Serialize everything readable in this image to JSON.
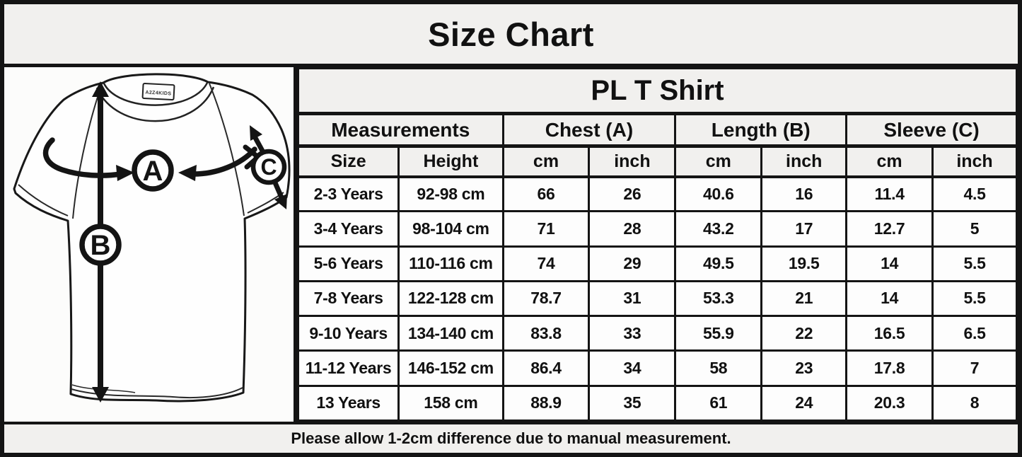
{
  "page": {
    "title": "Size Chart",
    "footer_note": "Please allow 1-2cm difference due to manual measurement."
  },
  "diagram": {
    "shirt_label": "A2Z4KIDS",
    "markers": [
      "A",
      "B",
      "C"
    ]
  },
  "table": {
    "product_header": "PL T Shirt",
    "group_headers": [
      "Measurements",
      "Chest (A)",
      "Length (B)",
      "Sleeve (C)"
    ],
    "sub_headers": [
      "Size",
      "Height",
      "cm",
      "inch",
      "cm",
      "inch",
      "cm",
      "inch"
    ]
  },
  "chart_data": {
    "type": "table",
    "title": "Size Chart",
    "subtitle": "PL T Shirt",
    "column_groups": [
      "Measurements",
      "Chest (A)",
      "Length (B)",
      "Sleeve (C)"
    ],
    "columns": [
      "Size",
      "Height",
      "Chest (A) cm",
      "Chest (A) inch",
      "Length (B) cm",
      "Length (B) inch",
      "Sleeve (C) cm",
      "Sleeve (C) inch"
    ],
    "rows": [
      [
        "2-3 Years",
        "92-98 cm",
        "66",
        "26",
        "40.6",
        "16",
        "11.4",
        "4.5"
      ],
      [
        "3-4 Years",
        "98-104 cm",
        "71",
        "28",
        "43.2",
        "17",
        "12.7",
        "5"
      ],
      [
        "5-6 Years",
        "110-116 cm",
        "74",
        "29",
        "49.5",
        "19.5",
        "14",
        "5.5"
      ],
      [
        "7-8 Years",
        "122-128 cm",
        "78.7",
        "31",
        "53.3",
        "21",
        "14",
        "5.5"
      ],
      [
        "9-10 Years",
        "134-140 cm",
        "83.8",
        "33",
        "55.9",
        "22",
        "16.5",
        "6.5"
      ],
      [
        "11-12 Years",
        "146-152 cm",
        "86.4",
        "34",
        "58",
        "23",
        "17.8",
        "7"
      ],
      [
        "13 Years",
        "158 cm",
        "88.9",
        "35",
        "61",
        "24",
        "20.3",
        "8"
      ]
    ],
    "note": "Please allow 1-2cm difference due to manual measurement."
  },
  "colors": {
    "background": "#f1f0ee",
    "cell_background": "#fdfdfd",
    "line": "#141414",
    "text": "#111111"
  }
}
